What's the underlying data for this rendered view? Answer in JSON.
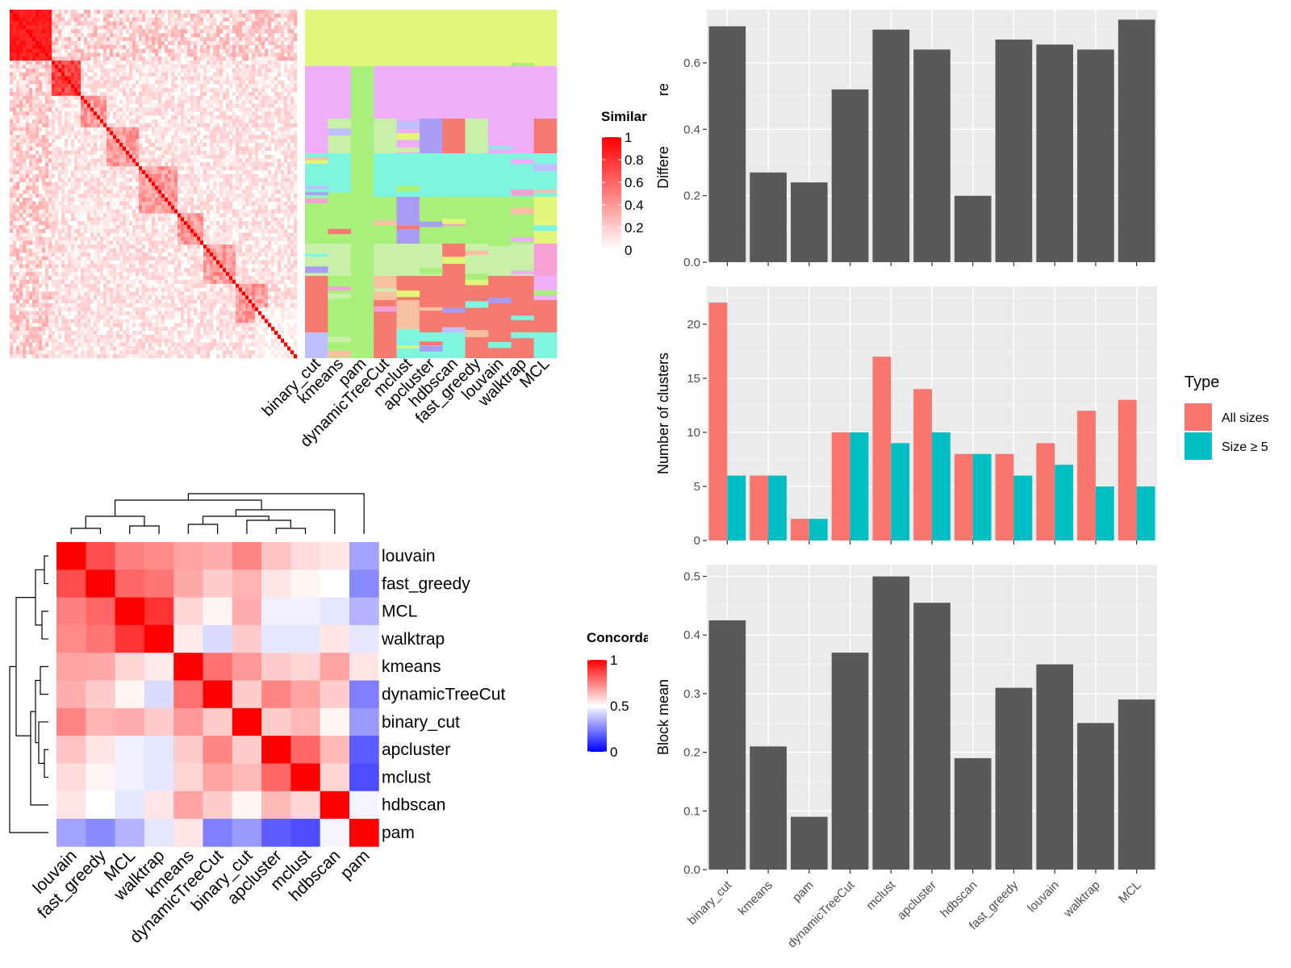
{
  "methods": [
    "binary_cut",
    "kmeans",
    "pam",
    "dynamicTreeCut",
    "mclust",
    "apcluster",
    "hdbscan",
    "fast_greedy",
    "louvain",
    "walktrap",
    "MCL"
  ],
  "similarity_heatmap": {
    "legend_title": "Similarity",
    "legend_ticks": [
      "1",
      "0.8",
      "0.6",
      "0.4",
      "0.2",
      "0"
    ],
    "label_colors": [
      "#e2f77a",
      "#eeaef8",
      "#a8f07a",
      "#7ff5e0",
      "#f47a72",
      "#c8f0a8",
      "#a99cf5",
      "#f7c0a0",
      "#f7a0d4",
      "#bfbfff"
    ]
  },
  "concordance_heatmap": {
    "legend_title": "Concordance",
    "legend_ticks": [
      "1",
      "0.5",
      "0"
    ],
    "order": [
      "louvain",
      "fast_greedy",
      "MCL",
      "walktrap",
      "kmeans",
      "dynamicTreeCut",
      "binary_cut",
      "apcluster",
      "mclust",
      "hdbscan",
      "pam"
    ],
    "matrix": [
      [
        1.0,
        0.85,
        0.75,
        0.73,
        0.68,
        0.66,
        0.74,
        0.62,
        0.57,
        0.55,
        0.32
      ],
      [
        0.85,
        1.0,
        0.8,
        0.77,
        0.67,
        0.6,
        0.65,
        0.55,
        0.52,
        0.5,
        0.27
      ],
      [
        0.75,
        0.8,
        1.0,
        0.9,
        0.58,
        0.52,
        0.66,
        0.47,
        0.47,
        0.45,
        0.35
      ],
      [
        0.73,
        0.77,
        0.9,
        1.0,
        0.54,
        0.43,
        0.6,
        0.45,
        0.45,
        0.55,
        0.45
      ],
      [
        0.68,
        0.67,
        0.58,
        0.54,
        1.0,
        0.78,
        0.7,
        0.6,
        0.58,
        0.68,
        0.55
      ],
      [
        0.66,
        0.6,
        0.52,
        0.43,
        0.78,
        1.0,
        0.6,
        0.74,
        0.68,
        0.6,
        0.25
      ],
      [
        0.74,
        0.65,
        0.66,
        0.6,
        0.7,
        0.6,
        1.0,
        0.6,
        0.64,
        0.52,
        0.3
      ],
      [
        0.62,
        0.55,
        0.47,
        0.45,
        0.6,
        0.74,
        0.6,
        1.0,
        0.8,
        0.64,
        0.18
      ],
      [
        0.57,
        0.52,
        0.47,
        0.45,
        0.58,
        0.68,
        0.64,
        0.8,
        1.0,
        0.58,
        0.15
      ],
      [
        0.55,
        0.5,
        0.45,
        0.55,
        0.68,
        0.6,
        0.52,
        0.64,
        0.58,
        1.0,
        0.48
      ],
      [
        0.32,
        0.27,
        0.35,
        0.45,
        0.55,
        0.25,
        0.3,
        0.18,
        0.15,
        0.48,
        1.0
      ]
    ]
  },
  "chart_data": [
    {
      "type": "bar",
      "categories": [
        "binary_cut",
        "kmeans",
        "pam",
        "dynamicTreeCut",
        "mclust",
        "apcluster",
        "hdbscan",
        "fast_greedy",
        "louvain",
        "walktrap",
        "MCL"
      ],
      "values": [
        0.71,
        0.27,
        0.24,
        0.52,
        0.7,
        0.64,
        0.2,
        0.67,
        0.655,
        0.64,
        0.73
      ],
      "ylabel": "Difference score",
      "ylim": [
        0,
        0.76
      ],
      "yticks": [
        "0.0",
        "0.2",
        "0.4",
        "0.6"
      ],
      "color": "#595959"
    },
    {
      "type": "bar",
      "categories": [
        "binary_cut",
        "kmeans",
        "pam",
        "dynamicTreeCut",
        "mclust",
        "apcluster",
        "hdbscan",
        "fast_greedy",
        "louvain",
        "walktrap",
        "MCL"
      ],
      "series": [
        {
          "name": "All sizes",
          "values": [
            22,
            6,
            2,
            10,
            17,
            14,
            8,
            8,
            9,
            12,
            13
          ],
          "color": "#f8766d"
        },
        {
          "name": "Size ≥ 5",
          "values": [
            6,
            6,
            2,
            10,
            9,
            10,
            8,
            6,
            7,
            5,
            5
          ],
          "color": "#00bfc4"
        }
      ],
      "ylabel": "Number of clusters",
      "ylim": [
        0,
        23.5
      ],
      "yticks": [
        "0",
        "5",
        "10",
        "15",
        "20"
      ],
      "legend_title": "Type",
      "legend_position": "right"
    },
    {
      "type": "bar",
      "categories": [
        "binary_cut",
        "kmeans",
        "pam",
        "dynamicTreeCut",
        "mclust",
        "apcluster",
        "hdbscan",
        "fast_greedy",
        "louvain",
        "walktrap",
        "MCL"
      ],
      "values": [
        0.425,
        0.21,
        0.09,
        0.37,
        0.5,
        0.455,
        0.19,
        0.31,
        0.35,
        0.25,
        0.29
      ],
      "ylabel": "Block mean",
      "ylim": [
        0,
        0.52
      ],
      "yticks": [
        "0.0",
        "0.1",
        "0.2",
        "0.3",
        "0.4",
        "0.5"
      ],
      "color": "#595959"
    }
  ]
}
